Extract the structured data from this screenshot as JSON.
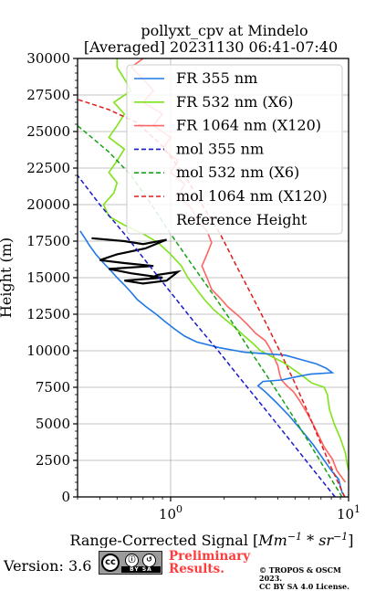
{
  "chart_data": {
    "type": "line",
    "title_line1": "pollyxt_cpv at Mindelo",
    "title_line2": "[Averaged] 20231130 06:41-07:40",
    "xlabel": "Range-Corrected Signal [",
    "xlabel_unit": "Mm",
    "xlabel_exp1": "−1",
    "xlabel_mid": " * sr",
    "xlabel_exp2": "−1",
    "xlabel_end": "]",
    "ylabel": "Height (m)",
    "x_scale": "log",
    "xlim": [
      0.3,
      10
    ],
    "ylim": [
      0,
      30000
    ],
    "xticks": [
      {
        "value": 1,
        "base": "10",
        "exp": "0"
      },
      {
        "value": 10,
        "base": "10",
        "exp": "1"
      }
    ],
    "yticks": [
      0,
      2500,
      5000,
      7500,
      10000,
      12500,
      15000,
      17500,
      20000,
      22500,
      25000,
      27500,
      30000
    ],
    "ytick_labels": [
      "0",
      "2500",
      "5000",
      "7500",
      "10000",
      "12500",
      "15000",
      "17500",
      "20000",
      "22500",
      "25000",
      "27500",
      "30000"
    ],
    "grid": true,
    "legend_position": "top-right",
    "series": [
      {
        "name": "FR 355 nm",
        "color": "#1f78e6",
        "style": "solid",
        "points": [
          [
            9.5,
            50
          ],
          [
            9.2,
            300
          ],
          [
            9.0,
            700
          ],
          [
            8.8,
            1200
          ],
          [
            8.0,
            1800
          ],
          [
            7.2,
            2600
          ],
          [
            6.3,
            3600
          ],
          [
            5.4,
            4600
          ],
          [
            4.6,
            5600
          ],
          [
            3.9,
            6500
          ],
          [
            3.4,
            7200
          ],
          [
            3.1,
            7600
          ],
          [
            3.3,
            7900
          ],
          [
            4.2,
            8000
          ],
          [
            5.0,
            8200
          ],
          [
            6.1,
            8400
          ],
          [
            8.1,
            8500
          ],
          [
            7.5,
            8800
          ],
          [
            6.6,
            9100
          ],
          [
            5.4,
            9400
          ],
          [
            4.4,
            9700
          ],
          [
            2.6,
            9900
          ],
          [
            1.9,
            10200
          ],
          [
            1.4,
            10600
          ],
          [
            1.2,
            11000
          ],
          [
            1.05,
            11500
          ],
          [
            0.93,
            12000
          ],
          [
            0.83,
            12500
          ],
          [
            0.73,
            13000
          ],
          [
            0.65,
            13500
          ],
          [
            0.6,
            14000
          ],
          [
            0.55,
            14500
          ],
          [
            0.5,
            15000
          ],
          [
            0.46,
            15500
          ],
          [
            0.42,
            16000
          ],
          [
            0.38,
            16600
          ],
          [
            0.35,
            17200
          ],
          [
            0.33,
            17700
          ],
          [
            0.31,
            18200
          ]
        ]
      },
      {
        "name": "FR 532 nm (X6)",
        "color": "#7ee319",
        "style": "solid",
        "points": [
          [
            10,
            1800
          ],
          [
            9.8,
            2300
          ],
          [
            9.6,
            3000
          ],
          [
            9.0,
            4000
          ],
          [
            8.3,
            5000
          ],
          [
            7.8,
            6000
          ],
          [
            7.6,
            7000
          ],
          [
            7.3,
            7500
          ],
          [
            6.2,
            7800
          ],
          [
            5.2,
            8500
          ],
          [
            4.3,
            9200
          ],
          [
            3.7,
            9600
          ],
          [
            3.2,
            10000
          ],
          [
            2.9,
            10500
          ],
          [
            2.6,
            11000
          ],
          [
            2.3,
            11600
          ],
          [
            2.0,
            12200
          ],
          [
            1.75,
            12800
          ],
          [
            1.55,
            13500
          ],
          [
            1.4,
            14200
          ],
          [
            1.25,
            15000
          ],
          [
            1.15,
            15800
          ],
          [
            1.0,
            16600
          ],
          [
            0.85,
            17400
          ],
          [
            0.7,
            18000
          ],
          [
            0.55,
            18600
          ],
          [
            0.45,
            19200
          ],
          [
            0.42,
            20000
          ],
          [
            0.48,
            20800
          ],
          [
            0.5,
            21500
          ],
          [
            0.45,
            22200
          ],
          [
            0.5,
            23000
          ],
          [
            0.55,
            23800
          ],
          [
            0.45,
            24600
          ],
          [
            0.5,
            25400
          ],
          [
            0.55,
            26200
          ],
          [
            0.48,
            27000
          ],
          [
            0.6,
            27800
          ],
          [
            0.55,
            28600
          ],
          [
            0.5,
            29400
          ],
          [
            0.5,
            30000
          ]
        ]
      },
      {
        "name": "FR 1064 nm (X120)",
        "color": "#ff6464",
        "style": "solid",
        "points": [
          [
            9.6,
            1000
          ],
          [
            8.6,
            1800
          ],
          [
            8.1,
            2600
          ],
          [
            7.3,
            3400
          ],
          [
            6.8,
            4200
          ],
          [
            6.3,
            5000
          ],
          [
            5.8,
            5800
          ],
          [
            5.3,
            6600
          ],
          [
            4.9,
            7200
          ],
          [
            4.5,
            7600
          ],
          [
            4.2,
            8000
          ],
          [
            4.1,
            8400
          ],
          [
            4.0,
            9000
          ],
          [
            3.8,
            9600
          ],
          [
            3.6,
            10200
          ],
          [
            3.4,
            10700
          ],
          [
            3.0,
            11200
          ],
          [
            2.7,
            11800
          ],
          [
            2.4,
            12400
          ],
          [
            2.1,
            13000
          ],
          [
            1.9,
            13600
          ],
          [
            1.7,
            14200
          ],
          [
            1.6,
            15000
          ],
          [
            1.5,
            15800
          ],
          [
            1.6,
            16600
          ],
          [
            1.7,
            17400
          ],
          [
            1.6,
            18200
          ],
          [
            1.4,
            19000
          ],
          [
            1.3,
            19800
          ],
          [
            1.1,
            20600
          ],
          [
            1.2,
            21400
          ],
          [
            1.0,
            22200
          ],
          [
            1.1,
            23000
          ],
          [
            0.9,
            23800
          ],
          [
            1.0,
            24600
          ],
          [
            0.8,
            25400
          ],
          [
            0.9,
            26200
          ],
          [
            0.7,
            27000
          ],
          [
            0.8,
            27800
          ],
          [
            0.7,
            28600
          ],
          [
            0.6,
            29400
          ],
          [
            0.7,
            30000
          ]
        ]
      },
      {
        "name": "mol 355 nm",
        "color": "#1a1acc",
        "style": "dashed",
        "points": [
          [
            8.4,
            0
          ],
          [
            6.2,
            2000
          ],
          [
            4.6,
            4000
          ],
          [
            3.4,
            6000
          ],
          [
            2.5,
            8000
          ],
          [
            1.85,
            10000
          ],
          [
            1.35,
            12000
          ],
          [
            1.0,
            14000
          ],
          [
            0.74,
            16000
          ],
          [
            0.55,
            18000
          ],
          [
            0.4,
            20000
          ],
          [
            0.3,
            22000
          ]
        ]
      },
      {
        "name": "mol 532 nm (X6)",
        "color": "#16a016",
        "style": "dashed",
        "points": [
          [
            9.2,
            0
          ],
          [
            7.3,
            2000
          ],
          [
            5.8,
            4000
          ],
          [
            4.6,
            6000
          ],
          [
            3.6,
            8000
          ],
          [
            2.8,
            10000
          ],
          [
            2.2,
            12000
          ],
          [
            1.7,
            14000
          ],
          [
            1.3,
            16000
          ],
          [
            1.0,
            18000
          ],
          [
            0.78,
            20000
          ],
          [
            0.6,
            22000
          ],
          [
            0.45,
            23600
          ],
          [
            0.36,
            24600
          ],
          [
            0.3,
            25400
          ]
        ]
      },
      {
        "name": "mol 1064 nm (X120)",
        "color": "#e11b1b",
        "style": "dashed",
        "points": [
          [
            9.5,
            0
          ],
          [
            8.0,
            2000
          ],
          [
            6.8,
            4000
          ],
          [
            5.8,
            6000
          ],
          [
            4.9,
            8000
          ],
          [
            4.1,
            10000
          ],
          [
            3.4,
            12000
          ],
          [
            2.8,
            14000
          ],
          [
            2.3,
            16000
          ],
          [
            1.9,
            18000
          ],
          [
            1.5,
            20000
          ],
          [
            1.2,
            22000
          ],
          [
            0.9,
            24000
          ],
          [
            0.65,
            25600
          ],
          [
            0.45,
            26500
          ],
          [
            0.3,
            27200
          ]
        ]
      },
      {
        "name": "Reference Height",
        "color": "#000000",
        "style": "solid",
        "points": [
          [
            0.36,
            17700
          ],
          [
            0.55,
            17500
          ],
          [
            0.7,
            17300
          ],
          [
            0.95,
            17600
          ],
          [
            0.72,
            17000
          ],
          [
            0.5,
            16600
          ],
          [
            0.4,
            16200
          ],
          [
            0.55,
            16000
          ],
          [
            0.8,
            15800
          ],
          [
            0.45,
            15600
          ],
          [
            0.6,
            15300
          ],
          [
            0.9,
            15000
          ],
          [
            0.55,
            14800
          ],
          [
            0.7,
            14600
          ],
          [
            0.95,
            14800
          ],
          [
            1.1,
            15400
          ],
          [
            0.85,
            15200
          ],
          [
            0.75,
            14900
          ]
        ]
      }
    ]
  },
  "footer": {
    "version": "Version: 3.6",
    "cc_logo": "cc",
    "cc_by": "ⓘ",
    "cc_sa": "↺",
    "cc_strip": "BY  SA",
    "preliminary_line1": "Preliminary",
    "preliminary_line2": "Results.",
    "copyright_line1": "© TROPOS & OSCM 2023.",
    "copyright_line2": "CC BY SA 4.0 License."
  }
}
